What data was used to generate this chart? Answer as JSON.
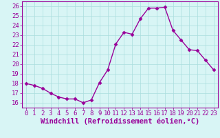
{
  "x": [
    0,
    1,
    2,
    3,
    4,
    5,
    6,
    7,
    8,
    9,
    10,
    11,
    12,
    13,
    14,
    15,
    16,
    17,
    18,
    19,
    20,
    21,
    22,
    23
  ],
  "y": [
    18.0,
    17.8,
    17.5,
    17.0,
    16.6,
    16.4,
    16.4,
    16.0,
    16.3,
    18.1,
    19.4,
    22.1,
    23.3,
    23.1,
    24.7,
    25.8,
    25.8,
    25.9,
    23.5,
    22.5,
    21.5,
    21.4,
    20.4,
    19.4
  ],
  "line_color": "#990099",
  "marker": "D",
  "markersize": 2.5,
  "linewidth": 1.0,
  "xlabel": "Windchill (Refroidissement éolien,°C)",
  "xlabel_fontsize": 7.5,
  "ylim": [
    15.5,
    26.5
  ],
  "xlim": [
    -0.5,
    23.5
  ],
  "yticks": [
    16,
    17,
    18,
    19,
    20,
    21,
    22,
    23,
    24,
    25,
    26
  ],
  "xticks": [
    0,
    1,
    2,
    3,
    4,
    5,
    6,
    7,
    8,
    9,
    10,
    11,
    12,
    13,
    14,
    15,
    16,
    17,
    18,
    19,
    20,
    21,
    22,
    23
  ],
  "bg_color": "#d8f5f5",
  "grid_color": "#aadddd",
  "line_color_spine": "#990099",
  "tick_color": "#990099",
  "tick_fontsize": 6.5,
  "spine_color": "#990099"
}
